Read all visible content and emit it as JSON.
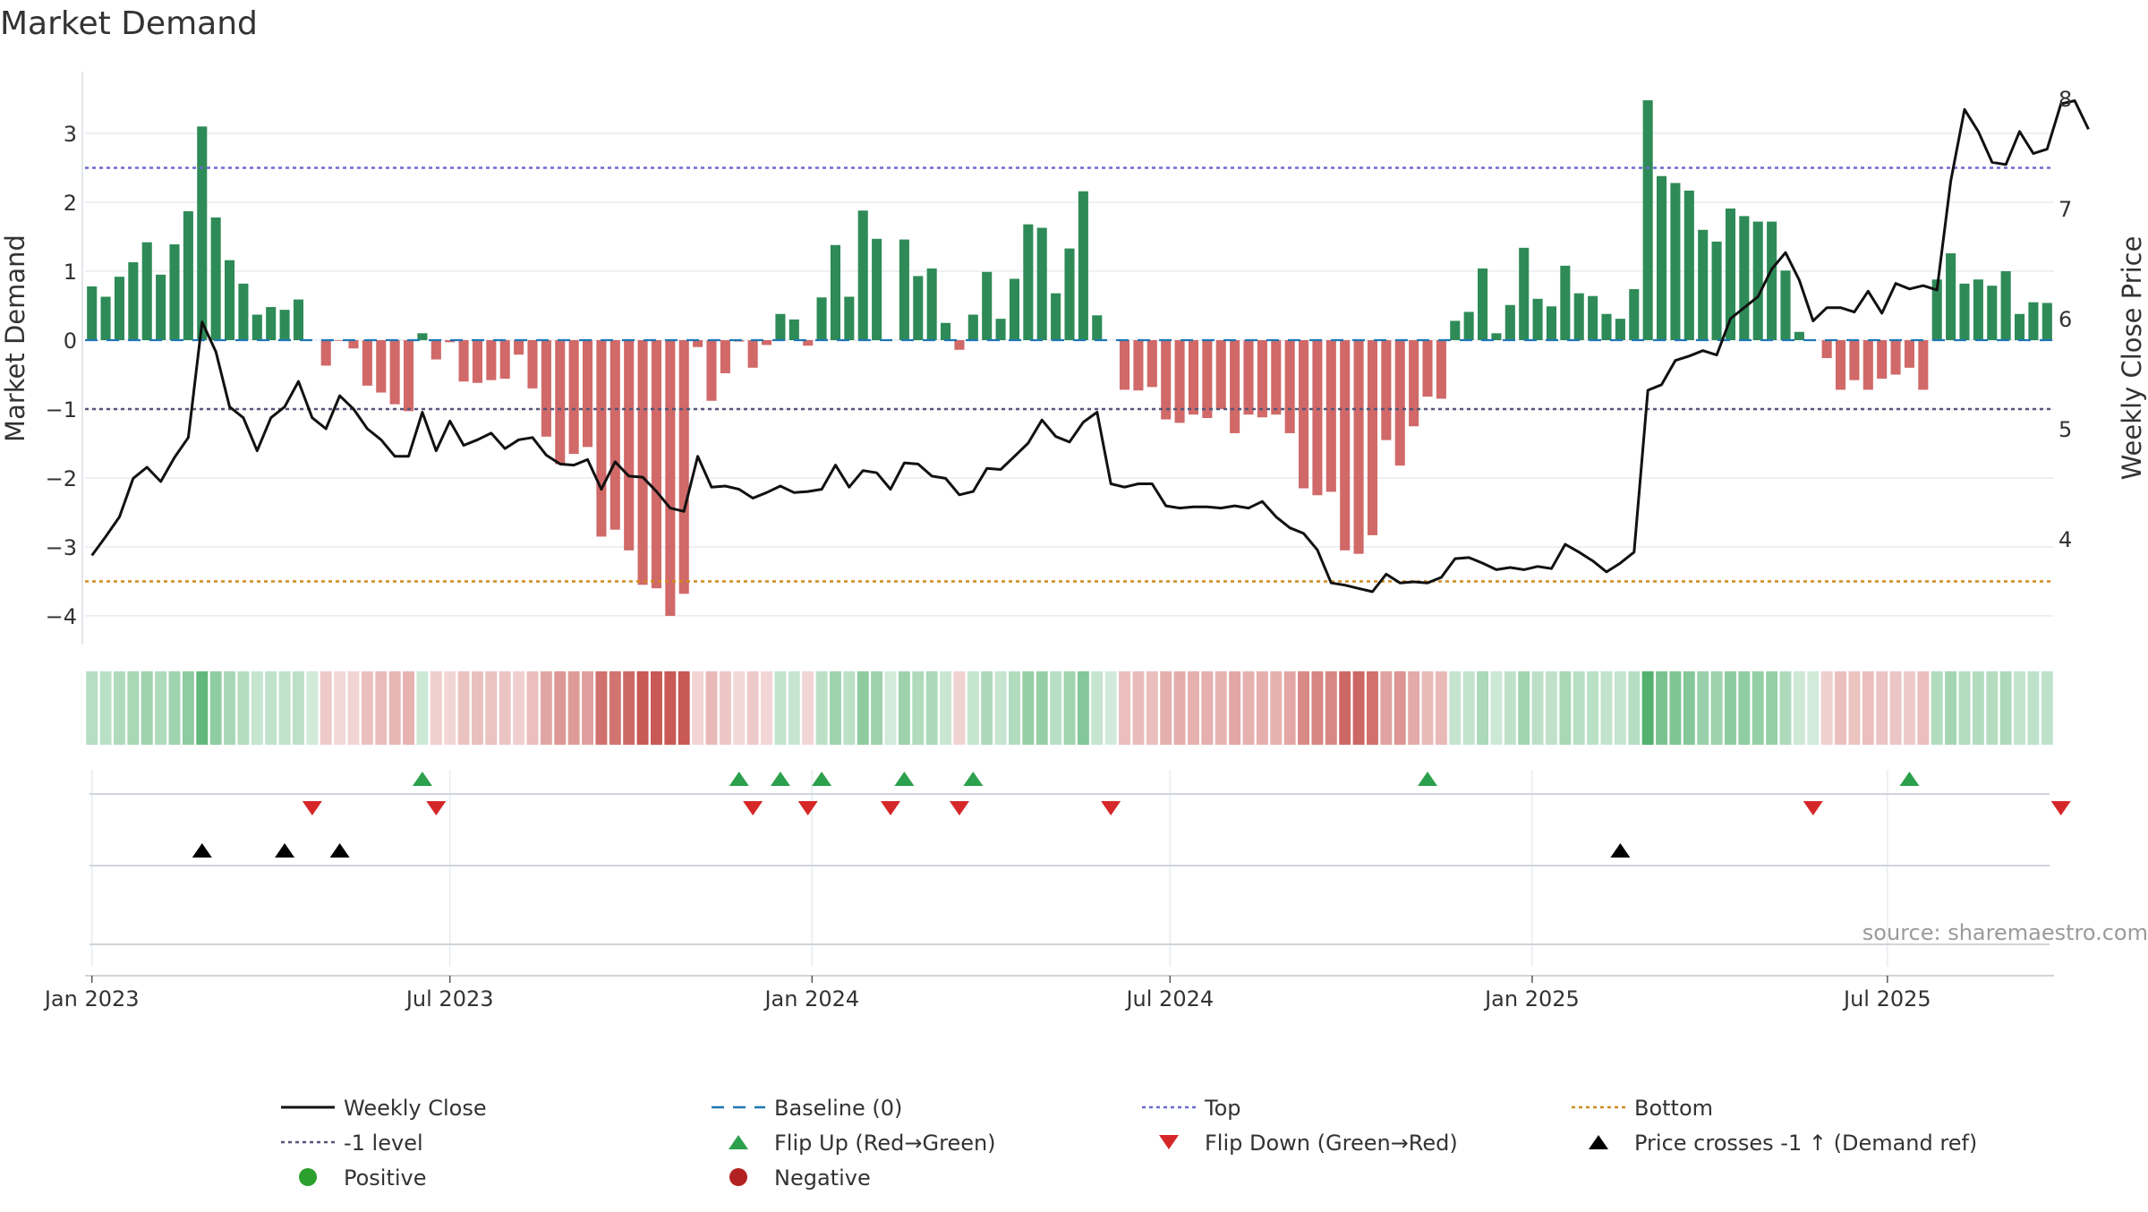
{
  "chart_data": {
    "type": "bar",
    "title": "Market Demand",
    "ylabel": "Market Demand",
    "y2label": "Weekly Close Price",
    "source": "source: sharemaestro.com",
    "ylim": [
      -4.4,
      3.85
    ],
    "y2lim": [
      3.0,
      8.2
    ],
    "yticks": [
      3,
      2,
      1,
      0,
      -1,
      -2,
      -3,
      -4
    ],
    "yticklabels": [
      "3",
      "2",
      "1",
      "0",
      "−1",
      "−2",
      "−3",
      "−4"
    ],
    "y2ticks": [
      8,
      7,
      6,
      5,
      4
    ],
    "y2ticklabels": [
      "8",
      "7",
      "6",
      "5",
      "4"
    ],
    "xticks": [
      {
        "week": 0,
        "label": "Jan 2023"
      },
      {
        "week": 26,
        "label": "Jul 2023"
      },
      {
        "week": 52.3,
        "label": "Jan 2024"
      },
      {
        "week": 78.3,
        "label": "Jul 2024"
      },
      {
        "week": 104.6,
        "label": "Jan 2025"
      },
      {
        "week": 130.4,
        "label": "Jul 2025"
      }
    ],
    "x_start": "2023-01-01",
    "x_step": "1 week",
    "reference_lines": {
      "top": 2.5,
      "minus_one": -1,
      "bottom": -3.5,
      "baseline": 0
    },
    "demand": [
      0.78,
      0.63,
      0.92,
      1.13,
      1.42,
      0.95,
      1.39,
      1.87,
      3.1,
      1.78,
      1.16,
      0.82,
      0.37,
      0.48,
      0.44,
      0.59,
      0,
      -0.37,
      -0.01,
      -0.12,
      -0.66,
      -0.76,
      -0.93,
      -1.03,
      0.1,
      -0.28,
      -0.03,
      -0.6,
      -0.62,
      -0.58,
      -0.56,
      -0.21,
      -0.7,
      -1.4,
      -1.8,
      -1.65,
      -1.55,
      -2.85,
      -2.75,
      -3.05,
      -3.55,
      -3.6,
      -4.0,
      -3.68,
      -0.1,
      -0.88,
      -0.48,
      -0.02,
      -0.4,
      -0.07,
      0.38,
      0.3,
      -0.08,
      0.62,
      1.38,
      0.63,
      1.88,
      1.47,
      0.0,
      1.46,
      0.93,
      1.04,
      0.25,
      -0.14,
      0.37,
      0.99,
      0.31,
      0.89,
      1.68,
      1.63,
      0.68,
      1.33,
      2.16,
      0.36,
      0,
      -0.72,
      -0.73,
      -0.68,
      -1.15,
      -1.2,
      -1.08,
      -1.13,
      -1.0,
      -1.35,
      -1.08,
      -1.12,
      -1.08,
      -1.35,
      -2.15,
      -2.25,
      -2.2,
      -3.05,
      -3.1,
      -2.83,
      -1.45,
      -1.82,
      -1.25,
      -0.82,
      -0.85,
      0.28,
      0.41,
      1.04,
      0.1,
      0.51,
      1.34,
      0.6,
      0.49,
      1.08,
      0.68,
      0.64,
      0.38,
      0.31,
      0.74,
      3.48,
      2.38,
      2.28,
      2.17,
      1.6,
      1.43,
      1.91,
      1.8,
      1.72,
      1.72,
      1.01,
      0.12,
      0,
      -0.26,
      -0.72,
      -0.58,
      -0.72,
      -0.56,
      -0.5,
      -0.4,
      -0.72,
      0.88,
      1.26,
      0.82,
      0.88,
      0.79,
      1.0,
      0.38,
      0.55,
      0.54
    ],
    "weekly_close": [
      3.85,
      4.02,
      4.2,
      4.55,
      4.65,
      4.52,
      4.74,
      4.92,
      5.97,
      5.7,
      5.2,
      5.1,
      4.8,
      5.1,
      5.2,
      5.43,
      5.1,
      5.0,
      5.3,
      5.18,
      5.0,
      4.9,
      4.75,
      4.75,
      5.15,
      4.8,
      5.07,
      4.85,
      4.9,
      4.96,
      4.82,
      4.9,
      4.92,
      4.76,
      4.68,
      4.67,
      4.72,
      4.45,
      4.7,
      4.57,
      4.56,
      4.43,
      4.28,
      4.25,
      4.75,
      4.47,
      4.48,
      4.45,
      4.37,
      4.42,
      4.48,
      4.42,
      4.43,
      4.45,
      4.67,
      4.47,
      4.62,
      4.6,
      4.45,
      4.69,
      4.68,
      4.57,
      4.55,
      4.4,
      4.43,
      4.64,
      4.63,
      4.75,
      4.87,
      5.08,
      4.93,
      4.88,
      5.06,
      5.15,
      4.5,
      4.47,
      4.5,
      4.5,
      4.3,
      4.28,
      4.29,
      4.29,
      4.28,
      4.3,
      4.28,
      4.34,
      4.2,
      4.1,
      4.05,
      3.9,
      3.6,
      3.58,
      3.55,
      3.52,
      3.68,
      3.6,
      3.61,
      3.6,
      3.65,
      3.82,
      3.83,
      3.78,
      3.72,
      3.74,
      3.72,
      3.75,
      3.73,
      3.95,
      3.88,
      3.8,
      3.7,
      3.78,
      3.88,
      5.35,
      5.4,
      5.62,
      5.66,
      5.71,
      5.67,
      6.0,
      6.1,
      6.2,
      6.45,
      6.6,
      6.35,
      5.98,
      6.1,
      6.1,
      6.06,
      6.25,
      6.05,
      6.32,
      6.27,
      6.3,
      6.26,
      7.25,
      7.9,
      7.7,
      7.42,
      7.4,
      7.7,
      7.5,
      7.54,
      7.95,
      7.98,
      7.72
    ],
    "heat_strip": "color intensity per week follows demand (green positive, red negative)",
    "flip_up_weeks": [
      24,
      47,
      50,
      53,
      59,
      64,
      97,
      132
    ],
    "flip_down_weeks": [
      16,
      25,
      48,
      52,
      58,
      63,
      74,
      125,
      143
    ],
    "price_cross_weeks": [
      8,
      14,
      18,
      111
    ],
    "legend": [
      {
        "label": "Weekly Close",
        "icon": "solid-line",
        "color": "#111111"
      },
      {
        "label": "Baseline (0)",
        "icon": "dashed-line",
        "color": "#1f77b4"
      },
      {
        "label": "Top",
        "icon": "dotted-line",
        "color": "#6a6ad0"
      },
      {
        "label": "Bottom",
        "icon": "dotted-line",
        "color": "#d08a1e"
      },
      {
        "label": "-1 level",
        "icon": "dotted-line",
        "color": "#555577"
      },
      {
        "label": "Flip Up (Red→Green)",
        "icon": "triangle-up",
        "color": "#2ca04c"
      },
      {
        "label": "Flip Down (Green→Red)",
        "icon": "triangle-down",
        "color": "#d62728"
      },
      {
        "label": "Price crosses -1 ↑ (Demand ref)",
        "icon": "triangle-up",
        "color": "#000000"
      },
      {
        "label": "Positive",
        "icon": "dot",
        "color": "#2ca02c"
      },
      {
        "label": "Negative",
        "icon": "dot",
        "color": "#b22222"
      }
    ]
  },
  "colors": {
    "positive_bar": "#2e8b57",
    "negative_bar": "#cd5c5c",
    "close_line": "#111111",
    "baseline": "#1f77b4",
    "top": "#6a6ad0",
    "minus_one": "#555577",
    "bottom": "#d08a1e",
    "grid": "#e8ecf0",
    "axis": "#d0d4da"
  }
}
